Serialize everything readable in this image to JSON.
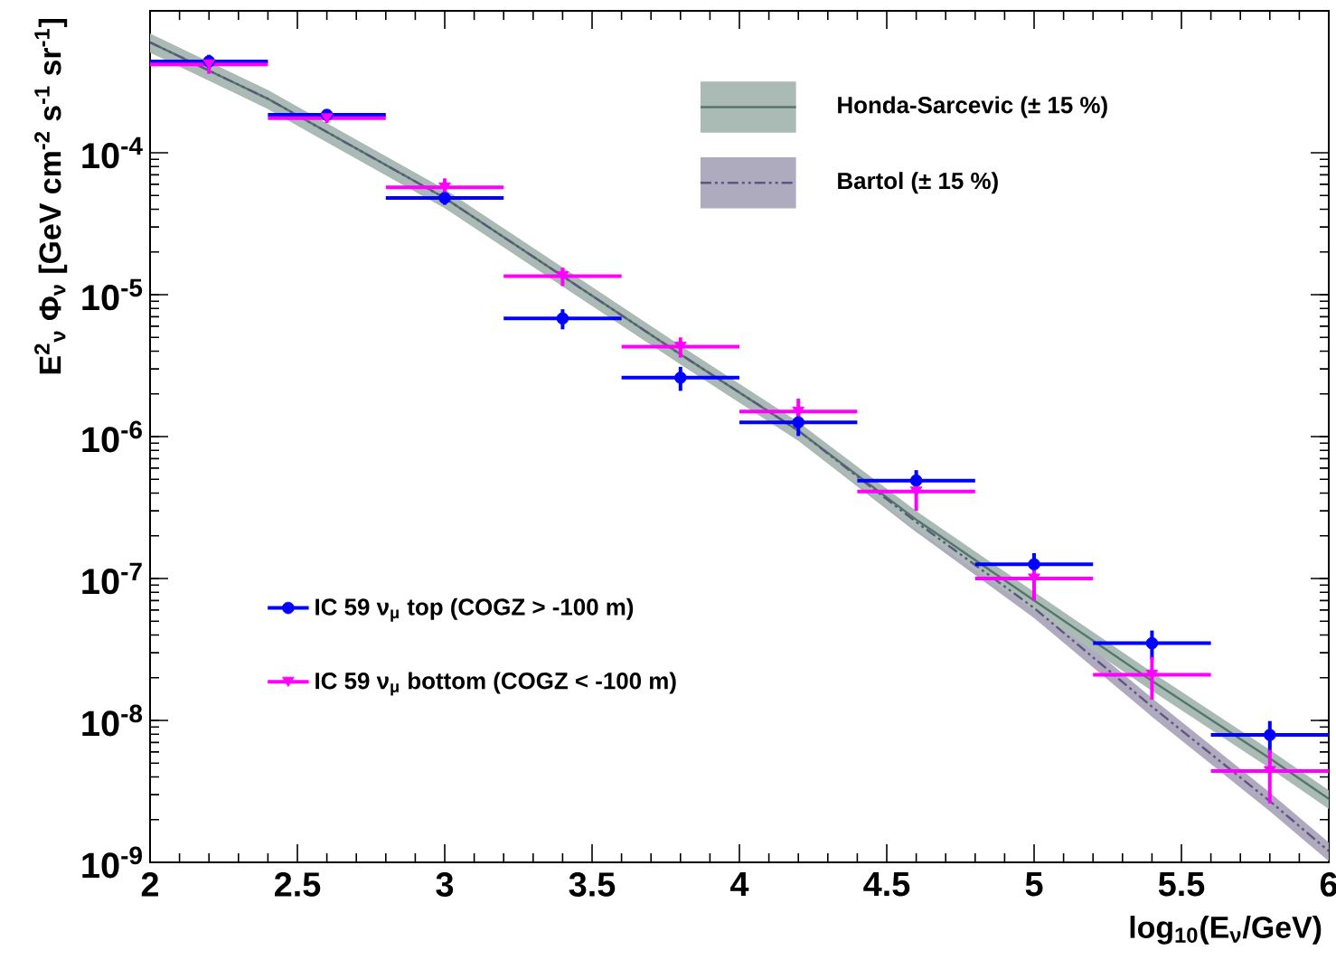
{
  "chart_data": {
    "type": "scatter",
    "xlabel": "log$_{10}$(E$_{ν}$/GeV)",
    "ylabel": "E$^{2}$$_{ν}$ Φ$_{ν}$ [GeV cm$^{-2}$ s$^{-1}$ sr$^{-1}$]",
    "log": "y",
    "grid": false,
    "legend": "top right",
    "xlim": [
      2,
      6
    ],
    "ylim": [
      1e-09,
      0.001
    ],
    "xticks": [
      2,
      2.5,
      3,
      3.5,
      4,
      4.5,
      5,
      5.5,
      6
    ],
    "yticks": [
      {
        "value": 1e-09,
        "label": "10$^{-9}$"
      },
      {
        "value": 1e-08,
        "label": "10$^{-8}$"
      },
      {
        "value": 1e-07,
        "label": "10$^{-7}$"
      },
      {
        "value": 1e-06,
        "label": "10$^{-6}$"
      },
      {
        "value": 1e-05,
        "label": "10$^{-5}$"
      },
      {
        "value": 0.0001,
        "label": "10$^{-4}$"
      }
    ],
    "series": [
      {
        "name": "Honda-Sarcevic (± 15 %)",
        "type": "line",
        "color": "#55756b",
        "line_style": "solid",
        "x": [
          2,
          2.4,
          2.6,
          3,
          3.4,
          3.8,
          4.2,
          4.6,
          5,
          5.4,
          5.8,
          6
        ],
        "values": [
          0.0006,
          0.00024,
          0.00014,
          4.8e-05,
          1.35e-05,
          3.8e-06,
          1.1e-06,
          2.6e-07,
          7e-08,
          1.9e-08,
          5.4e-09,
          2.8e-09
        ],
        "lower": [
          0.00051,
          0.000204,
          0.000119,
          4.08e-05,
          1.1475e-05,
          3.23e-06,
          9.35e-07,
          2.21e-07,
          5.95e-08,
          1.615e-08,
          4.59e-09,
          2.38e-09
        ],
        "upper": [
          0.00069,
          0.000276,
          0.000161,
          5.52e-05,
          1.5525e-05,
          4.37e-06,
          1.265e-06,
          2.99e-07,
          8.05e-08,
          2.185e-08,
          6.21e-09,
          3.22e-09
        ]
      },
      {
        "name": "Bartol (± 15 %)",
        "type": "line",
        "color": "#5e567e",
        "line_style": "dashed",
        "x": [
          2,
          2.4,
          2.6,
          3,
          3.4,
          3.8,
          4.2,
          4.6,
          5,
          5.4,
          5.8,
          6
        ],
        "values": [
          0.0006,
          0.00024,
          0.00014,
          4.8e-05,
          1.35e-05,
          3.8e-06,
          1.1e-06,
          2.5e-07,
          6.2e-08,
          1.25e-08,
          2.7e-09,
          1.2e-09
        ],
        "lower": [
          0.00051,
          0.000204,
          0.000119,
          4.08e-05,
          1.1475e-05,
          3.23e-06,
          9.35e-07,
          2.125e-07,
          5.27e-08,
          1.0625e-08,
          2.295e-09,
          1.02e-09
        ],
        "upper": [
          0.00069,
          0.000276,
          0.000161,
          5.52e-05,
          1.5525e-05,
          4.37e-06,
          1.265e-06,
          2.875e-07,
          7.13e-08,
          1.4375e-08,
          3.105e-09,
          1.38e-09
        ]
      },
      {
        "name": "IC 59 ν$_{μ}$ top (COGZ > -100 m)",
        "marker": "circle",
        "color": "#0000ff",
        "x": [
          2.2,
          2.6,
          3.0,
          3.4,
          3.8,
          4.2,
          4.6,
          5.0,
          5.4,
          5.8
        ],
        "values": [
          0.00044,
          0.000185,
          4.8e-05,
          6.8e-06,
          2.6e-06,
          1.26e-06,
          4.9e-07,
          1.26e-07,
          3.5e-08,
          7.9e-09
        ],
        "errors": [
          5e-05,
          1.2e-05,
          5e-06,
          1.1e-06,
          5e-07,
          2.5e-07,
          9e-08,
          2.5e-08,
          8e-09,
          2e-09
        ],
        "xerrors": [
          0.2,
          0.2,
          0.2,
          0.2,
          0.2,
          0.2,
          0.2,
          0.2,
          0.2,
          0.2
        ]
      },
      {
        "name": "IC 59 ν$_{μ}$ bottom (COGZ < -100 m)",
        "marker": "triangle",
        "color": "#ff00ff",
        "x": [
          2.2,
          2.6,
          3.0,
          3.4,
          3.8,
          4.2,
          4.6,
          5.0,
          5.4,
          5.8
        ],
        "values": [
          0.00042,
          0.000175,
          5.7e-05,
          1.35e-05,
          4.3e-06,
          1.5e-06,
          4.1e-07,
          1e-07,
          2.1e-08,
          4.4e-09
        ],
        "errors": [
          6e-05,
          1.3e-05,
          9e-06,
          2e-06,
          7e-07,
          3.5e-07,
          1.1e-07,
          3e-08,
          7e-09,
          1.8e-09
        ],
        "xerrors": [
          0.2,
          0.2,
          0.2,
          0.2,
          0.2,
          0.2,
          0.2,
          0.2,
          0.2,
          0.2
        ]
      }
    ]
  }
}
